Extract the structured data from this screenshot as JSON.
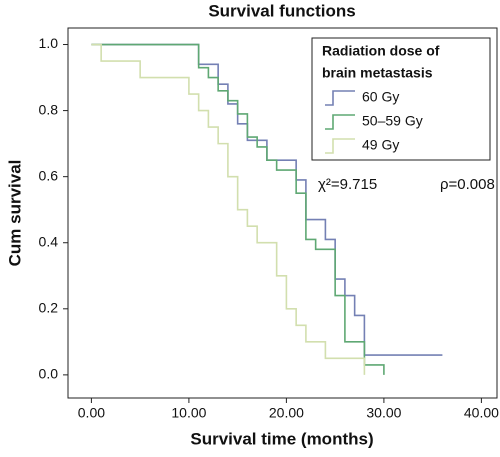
{
  "chart_data": {
    "type": "step",
    "title": "Survival functions",
    "x_label": "Survival time (months)",
    "y_label": "Cum survival",
    "legend_title": [
      "Radiation dose of",
      "brain metastasis"
    ],
    "annotations": [
      "χ²=9.715",
      "ρ=0.008"
    ],
    "xlim": [
      -2.4,
      41.6
    ],
    "ylim": [
      -0.07,
      1.05
    ],
    "xticks": [
      {
        "value": 0,
        "label": "0.00"
      },
      {
        "value": 10,
        "label": "10.00"
      },
      {
        "value": 20,
        "label": "20.00"
      },
      {
        "value": 30,
        "label": "30.00"
      },
      {
        "value": 40,
        "label": "40.00"
      }
    ],
    "yticks": [
      {
        "value": 0,
        "label": "0.0"
      },
      {
        "value": 0.2,
        "label": "0.2"
      },
      {
        "value": 0.4,
        "label": "0.4"
      },
      {
        "value": 0.6,
        "label": "0.6"
      },
      {
        "value": 0.8,
        "label": "0.8"
      },
      {
        "value": 1,
        "label": "1.0"
      }
    ],
    "series": [
      {
        "name": "60 Gy",
        "color": "#7480b4",
        "x": [
          0,
          11,
          13,
          14,
          15,
          16,
          18,
          21,
          22,
          24,
          25,
          26,
          27,
          28,
          36
        ],
        "values": [
          1.0,
          0.94,
          0.88,
          0.82,
          0.76,
          0.71,
          0.65,
          0.59,
          0.47,
          0.41,
          0.29,
          0.24,
          0.18,
          0.06,
          0.06
        ]
      },
      {
        "name": "50–59 Gy",
        "color": "#5fa873",
        "x": [
          0,
          11,
          12,
          13,
          14,
          15,
          16,
          17,
          18,
          19,
          21,
          22,
          23,
          25,
          26,
          28,
          30
        ],
        "values": [
          1.0,
          0.93,
          0.9,
          0.86,
          0.83,
          0.79,
          0.72,
          0.69,
          0.65,
          0.62,
          0.55,
          0.41,
          0.38,
          0.24,
          0.1,
          0.03,
          0.0
        ]
      },
      {
        "name": "49 Gy",
        "color": "#d2dfae",
        "x": [
          0,
          1,
          5,
          10,
          11,
          12,
          13,
          14,
          15,
          16,
          17,
          19,
          20,
          21,
          22,
          24,
          28
        ],
        "values": [
          1.0,
          0.95,
          0.9,
          0.85,
          0.8,
          0.75,
          0.7,
          0.6,
          0.5,
          0.45,
          0.4,
          0.3,
          0.2,
          0.15,
          0.1,
          0.05,
          0.0
        ]
      }
    ]
  }
}
